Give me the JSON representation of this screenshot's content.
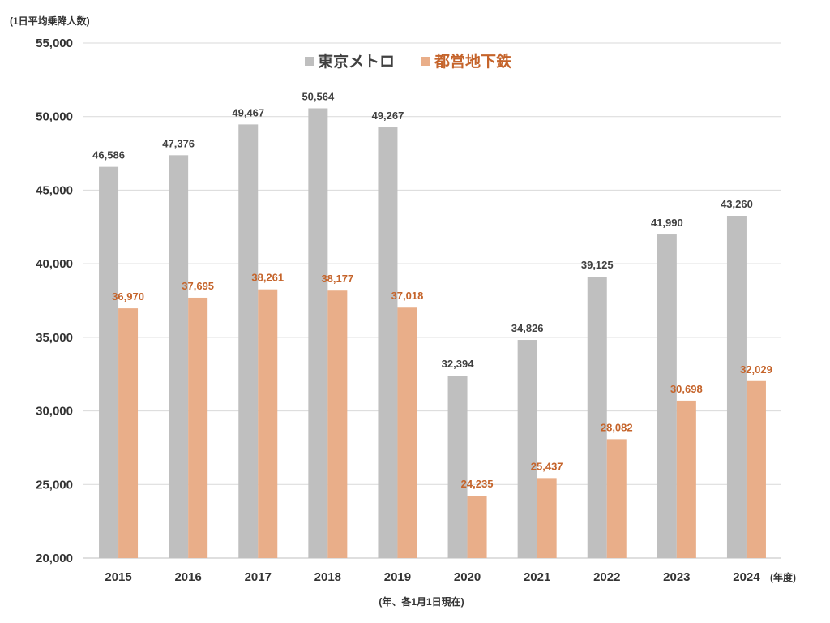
{
  "chart_data": {
    "type": "bar",
    "y_unit_label": "(1日平均乗降人数)",
    "x_unit_label": "(年度)",
    "footnote": "(年、各1月1日現在)",
    "categories": [
      "2015",
      "2016",
      "2017",
      "2018",
      "2019",
      "2020",
      "2021",
      "2022",
      "2023",
      "2024"
    ],
    "series": [
      {
        "name": "東京メトロ",
        "color": "#bfbfbf",
        "label_color": "#404040",
        "values": [
          46586,
          47376,
          49467,
          50564,
          49267,
          32394,
          34826,
          39125,
          41990,
          43260
        ],
        "labels": [
          "46,586",
          "47,376",
          "49,467",
          "50,564",
          "49,267",
          "32,394",
          "34,826",
          "39,125",
          "41,990",
          "43,260"
        ]
      },
      {
        "name": "都営地下鉄",
        "color": "#e9ae89",
        "label_color": "#c5642b",
        "values": [
          36970,
          37695,
          38261,
          38177,
          37018,
          24235,
          25437,
          28082,
          30698,
          32029
        ],
        "labels": [
          "36,970",
          "37,695",
          "38,261",
          "38,177",
          "37,018",
          "24,235",
          "25,437",
          "28,082",
          "30,698",
          "32,029"
        ]
      }
    ],
    "ylim": [
      20000,
      55000
    ],
    "yticks": [
      20000,
      25000,
      30000,
      35000,
      40000,
      45000,
      50000,
      55000
    ],
    "ytick_labels": [
      "20,000",
      "25,000",
      "30,000",
      "35,000",
      "40,000",
      "45,000",
      "50,000",
      "55,000"
    ],
    "grid": true,
    "legend_position": "top-center"
  }
}
